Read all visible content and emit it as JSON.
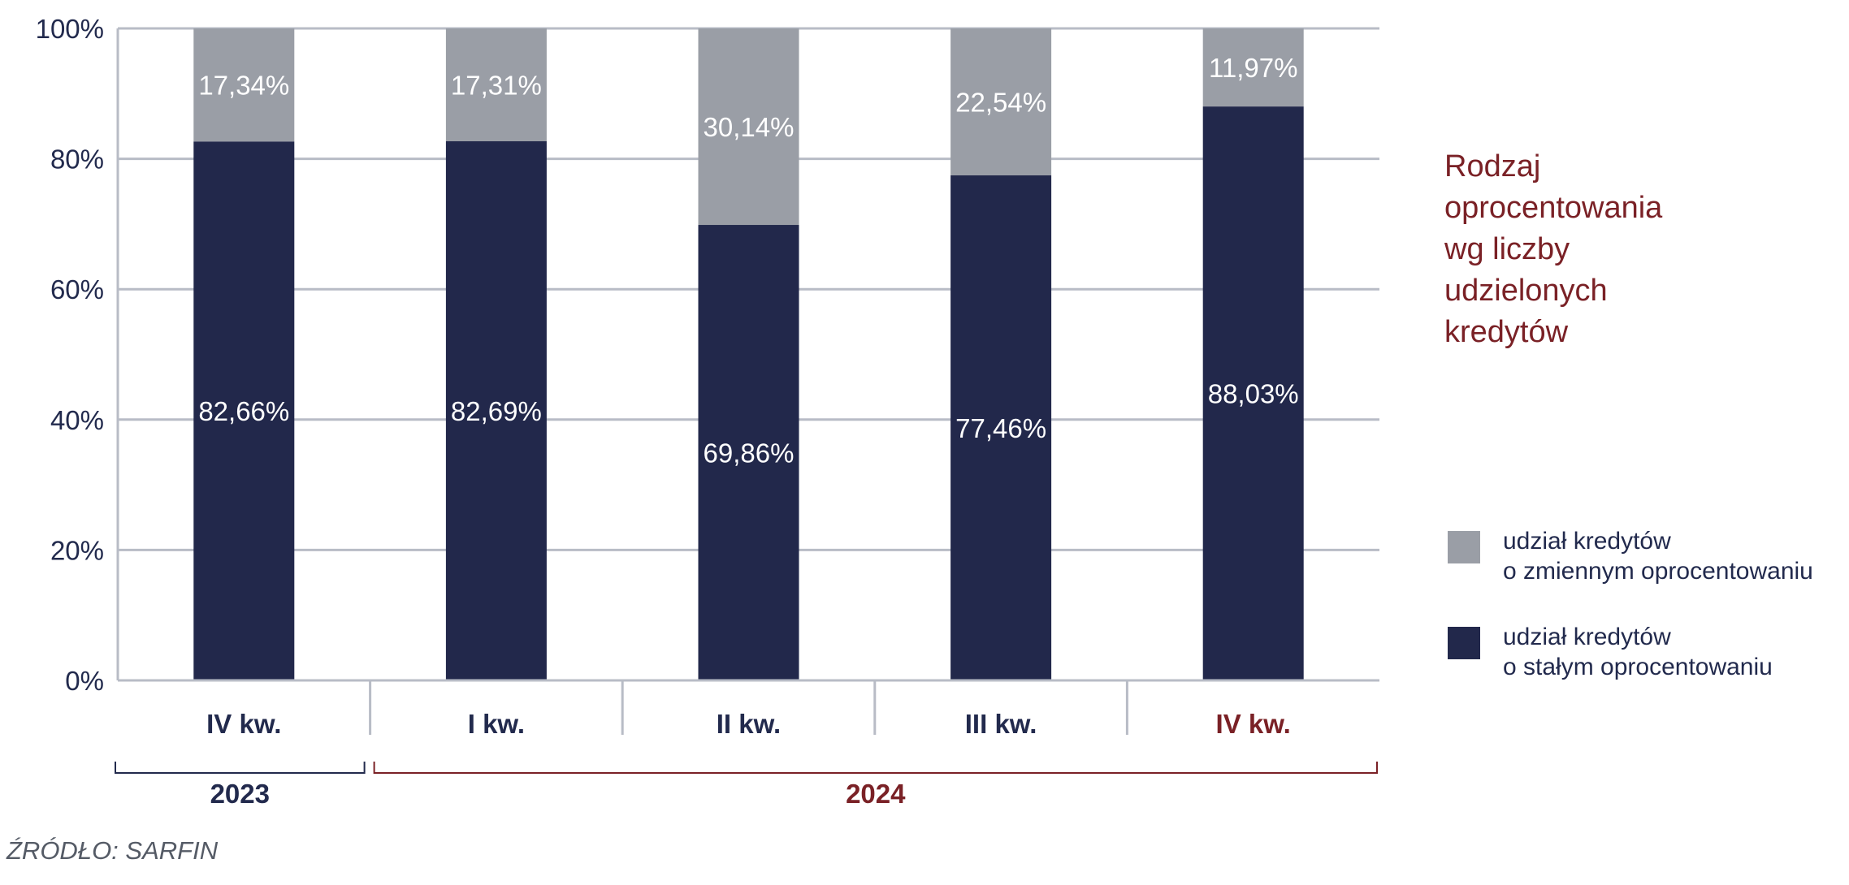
{
  "chart_data": {
    "type": "bar",
    "stacked": true,
    "categories": [
      "IV kw.",
      "I kw.",
      "II kw.",
      "III kw.",
      "IV kw."
    ],
    "category_colors": [
      "#222a4d",
      "#222a4d",
      "#222a4d",
      "#222a4d",
      "#7a2126"
    ],
    "groups": [
      {
        "label": "2023",
        "span": [
          0,
          0
        ],
        "color": "#222a4d"
      },
      {
        "label": "2024",
        "span": [
          1,
          4
        ],
        "color": "#7a2126"
      }
    ],
    "series": [
      {
        "name": "udział kredytów o stałym oprocentowaniu",
        "color": "#22284b",
        "values": [
          82.66,
          82.69,
          69.86,
          77.46,
          88.03
        ],
        "labels": [
          "82,66%",
          "82,69%",
          "69,86%",
          "77,46%",
          "88,03%"
        ]
      },
      {
        "name": "udział kredytów o zmiennym oprocentowaniu",
        "color": "#9a9ea6",
        "values": [
          17.34,
          17.31,
          30.14,
          22.54,
          11.97
        ],
        "labels": [
          "17,34%",
          "17,31%",
          "30,14%",
          "22,54%",
          "11,97%"
        ]
      }
    ],
    "y_ticks": [
      0,
      20,
      40,
      60,
      80,
      100
    ],
    "y_tick_labels": [
      "0%",
      "20%",
      "40%",
      "60%",
      "80%",
      "100%"
    ],
    "ylim": [
      0,
      100
    ],
    "grid": true,
    "legend_position": "right"
  },
  "title_lines": [
    "Rodzaj",
    "oprocentowania",
    "wg liczby",
    "udzielonych",
    "kredytów"
  ],
  "legend": [
    {
      "color": "#9a9ea6",
      "lines": [
        "udział kredytów",
        "o zmiennym oprocentowaniu"
      ]
    },
    {
      "color": "#22284b",
      "lines": [
        "udział kredytów",
        "o stałym oprocentowaniu"
      ]
    }
  ],
  "source": "ŹRÓDŁO: SARFIN"
}
